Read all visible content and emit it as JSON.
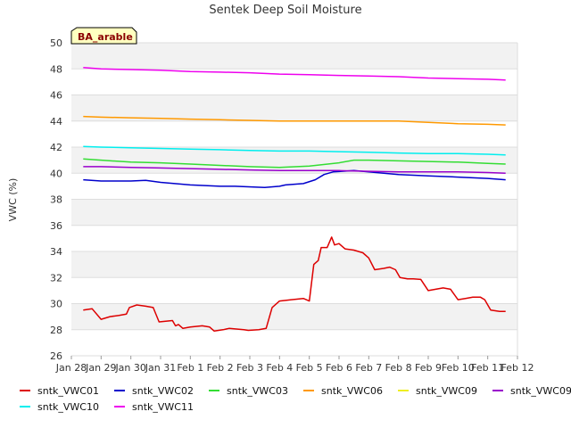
{
  "chart_data": {
    "type": "line",
    "title": "Sentek Deep Soil Moisture",
    "badge": "BA_arable",
    "xlabel": "",
    "ylabel": "VWC (%)",
    "ylim": [
      26,
      50
    ],
    "yticks": [
      26,
      28,
      30,
      32,
      34,
      36,
      38,
      40,
      42,
      44,
      46,
      48,
      50
    ],
    "xlim": [
      0,
      15
    ],
    "xticks": [
      {
        "x": 0,
        "label": "Jan 28"
      },
      {
        "x": 1,
        "label": "Jan 29"
      },
      {
        "x": 2,
        "label": "Jan 30"
      },
      {
        "x": 3,
        "label": "Jan 31"
      },
      {
        "x": 4,
        "label": "Feb 1"
      },
      {
        "x": 5,
        "label": "Feb 2"
      },
      {
        "x": 6,
        "label": "Feb 3"
      },
      {
        "x": 7,
        "label": "Feb 4"
      },
      {
        "x": 8,
        "label": "Feb 5"
      },
      {
        "x": 9,
        "label": "Feb 6"
      },
      {
        "x": 10,
        "label": "Feb 7"
      },
      {
        "x": 11,
        "label": "Feb 8"
      },
      {
        "x": 12,
        "label": "Feb 9"
      },
      {
        "x": 13,
        "label": "Feb 10"
      },
      {
        "x": 14,
        "label": "Feb 11"
      },
      {
        "x": 15,
        "label": "Feb 12"
      }
    ],
    "grid": true,
    "legend_position": "bottom",
    "series": [
      {
        "name": "sntk_VWC01",
        "color": "#dd0000",
        "points": [
          [
            0.4,
            29.5
          ],
          [
            0.7,
            29.6
          ],
          [
            1.0,
            28.8
          ],
          [
            1.3,
            29.0
          ],
          [
            1.6,
            29.1
          ],
          [
            1.85,
            29.2
          ],
          [
            1.95,
            29.7
          ],
          [
            2.2,
            29.9
          ],
          [
            2.5,
            29.8
          ],
          [
            2.75,
            29.7
          ],
          [
            2.95,
            28.6
          ],
          [
            3.4,
            28.7
          ],
          [
            3.5,
            28.3
          ],
          [
            3.6,
            28.4
          ],
          [
            3.75,
            28.1
          ],
          [
            4.0,
            28.2
          ],
          [
            4.4,
            28.3
          ],
          [
            4.65,
            28.2
          ],
          [
            4.8,
            27.9
          ],
          [
            5.1,
            28.0
          ],
          [
            5.3,
            28.1
          ],
          [
            5.8,
            28.0
          ],
          [
            5.95,
            27.95
          ],
          [
            6.3,
            28.0
          ],
          [
            6.55,
            28.1
          ],
          [
            6.75,
            29.7
          ],
          [
            7.0,
            30.2
          ],
          [
            7.4,
            30.3
          ],
          [
            7.8,
            30.4
          ],
          [
            8.0,
            30.2
          ],
          [
            8.15,
            33.0
          ],
          [
            8.3,
            33.3
          ],
          [
            8.4,
            34.3
          ],
          [
            8.6,
            34.3
          ],
          [
            8.75,
            35.1
          ],
          [
            8.85,
            34.5
          ],
          [
            9.0,
            34.6
          ],
          [
            9.2,
            34.2
          ],
          [
            9.5,
            34.1
          ],
          [
            9.8,
            33.9
          ],
          [
            10.0,
            33.5
          ],
          [
            10.2,
            32.6
          ],
          [
            10.5,
            32.7
          ],
          [
            10.7,
            32.8
          ],
          [
            10.9,
            32.6
          ],
          [
            11.05,
            32.0
          ],
          [
            11.3,
            31.9
          ],
          [
            11.5,
            31.9
          ],
          [
            11.75,
            31.85
          ],
          [
            12.0,
            31.0
          ],
          [
            12.25,
            31.1
          ],
          [
            12.5,
            31.2
          ],
          [
            12.75,
            31.1
          ],
          [
            13.0,
            30.3
          ],
          [
            13.25,
            30.4
          ],
          [
            13.5,
            30.5
          ],
          [
            13.75,
            30.5
          ],
          [
            13.9,
            30.3
          ],
          [
            14.1,
            29.5
          ],
          [
            14.4,
            29.4
          ],
          [
            14.6,
            29.4
          ]
        ]
      },
      {
        "name": "sntk_VWC02",
        "color": "#0000cc",
        "points": [
          [
            0.4,
            39.5
          ],
          [
            1.0,
            39.4
          ],
          [
            2.0,
            39.4
          ],
          [
            2.5,
            39.45
          ],
          [
            3.0,
            39.3
          ],
          [
            4.0,
            39.1
          ],
          [
            5.0,
            39.0
          ],
          [
            5.5,
            39.0
          ],
          [
            6.5,
            38.9
          ],
          [
            7.0,
            39.0
          ],
          [
            7.2,
            39.1
          ],
          [
            7.8,
            39.2
          ],
          [
            8.2,
            39.5
          ],
          [
            8.5,
            39.9
          ],
          [
            8.8,
            40.1
          ],
          [
            9.5,
            40.2
          ],
          [
            10.0,
            40.1
          ],
          [
            11.0,
            39.9
          ],
          [
            12.0,
            39.8
          ],
          [
            13.0,
            39.7
          ],
          [
            14.0,
            39.6
          ],
          [
            14.6,
            39.5
          ]
        ]
      },
      {
        "name": "sntk_VWC03",
        "color": "#33dd33",
        "points": [
          [
            0.4,
            41.1
          ],
          [
            1.0,
            41.0
          ],
          [
            2.0,
            40.85
          ],
          [
            3.0,
            40.8
          ],
          [
            4.0,
            40.7
          ],
          [
            5.0,
            40.6
          ],
          [
            6.0,
            40.5
          ],
          [
            7.0,
            40.45
          ],
          [
            8.0,
            40.55
          ],
          [
            9.0,
            40.8
          ],
          [
            9.5,
            41.0
          ],
          [
            10.0,
            41.0
          ],
          [
            11.0,
            40.95
          ],
          [
            12.0,
            40.9
          ],
          [
            13.0,
            40.85
          ],
          [
            14.0,
            40.75
          ],
          [
            14.6,
            40.7
          ]
        ]
      },
      {
        "name": "sntk_VWC06",
        "color": "#ff9900",
        "points": [
          [
            0.4,
            44.35
          ],
          [
            1.0,
            44.3
          ],
          [
            2.0,
            44.25
          ],
          [
            3.0,
            44.2
          ],
          [
            4.0,
            44.15
          ],
          [
            5.0,
            44.1
          ],
          [
            6.0,
            44.05
          ],
          [
            7.0,
            44.0
          ],
          [
            8.0,
            44.0
          ],
          [
            9.0,
            44.0
          ],
          [
            10.0,
            44.0
          ],
          [
            11.0,
            44.0
          ],
          [
            12.0,
            43.9
          ],
          [
            13.0,
            43.8
          ],
          [
            14.0,
            43.75
          ],
          [
            14.6,
            43.7
          ]
        ]
      },
      {
        "name": "sntk_VWC09",
        "color": "#eeee22",
        "points": []
      },
      {
        "name": "sntk_VWC09",
        "color": "#9900cc",
        "points": [
          [
            0.4,
            40.5
          ],
          [
            1.0,
            40.5
          ],
          [
            2.0,
            40.45
          ],
          [
            3.0,
            40.4
          ],
          [
            4.0,
            40.35
          ],
          [
            5.0,
            40.3
          ],
          [
            6.0,
            40.25
          ],
          [
            7.0,
            40.2
          ],
          [
            8.0,
            40.2
          ],
          [
            9.0,
            40.2
          ],
          [
            10.0,
            40.15
          ],
          [
            11.0,
            40.1
          ],
          [
            12.0,
            40.1
          ],
          [
            13.0,
            40.1
          ],
          [
            14.0,
            40.05
          ],
          [
            14.6,
            40.0
          ]
        ]
      },
      {
        "name": "sntk_VWC10",
        "color": "#00eeee",
        "points": [
          [
            0.4,
            42.05
          ],
          [
            1.0,
            42.0
          ],
          [
            2.0,
            41.95
          ],
          [
            3.0,
            41.9
          ],
          [
            4.0,
            41.85
          ],
          [
            5.0,
            41.8
          ],
          [
            6.0,
            41.75
          ],
          [
            7.0,
            41.7
          ],
          [
            8.0,
            41.7
          ],
          [
            9.0,
            41.65
          ],
          [
            10.0,
            41.6
          ],
          [
            11.0,
            41.55
          ],
          [
            12.0,
            41.5
          ],
          [
            13.0,
            41.5
          ],
          [
            14.0,
            41.45
          ],
          [
            14.6,
            41.4
          ]
        ]
      },
      {
        "name": "sntk_VWC11",
        "color": "#ee00ee",
        "points": [
          [
            0.4,
            48.1
          ],
          [
            1.0,
            48.0
          ],
          [
            2.0,
            47.95
          ],
          [
            3.0,
            47.9
          ],
          [
            4.0,
            47.8
          ],
          [
            5.0,
            47.75
          ],
          [
            6.0,
            47.7
          ],
          [
            7.0,
            47.6
          ],
          [
            8.0,
            47.55
          ],
          [
            9.0,
            47.5
          ],
          [
            10.0,
            47.45
          ],
          [
            11.0,
            47.4
          ],
          [
            12.0,
            47.3
          ],
          [
            13.0,
            47.25
          ],
          [
            14.0,
            47.2
          ],
          [
            14.6,
            47.15
          ]
        ]
      }
    ]
  }
}
